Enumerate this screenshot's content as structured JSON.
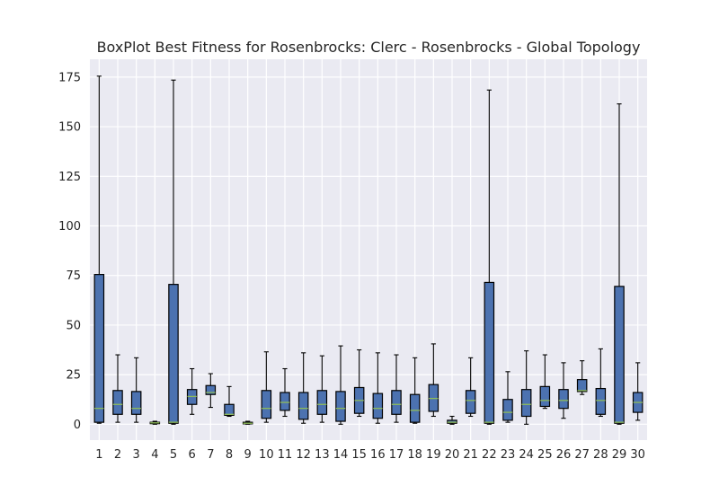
{
  "chart_data": {
    "type": "boxplot",
    "title": "BoxPlot Best Fitness for Rosenbrocks: Clerc - Rosenbrocks - Global Topology",
    "xlabel": "",
    "ylabel": "",
    "ylim": [
      -8,
      184
    ],
    "yticks": [
      0,
      25,
      50,
      75,
      100,
      125,
      150,
      175
    ],
    "grid": true,
    "background": "#eaeaf2",
    "box_color": "#4c72b0",
    "median_color": "#8fbc5a",
    "categories": [
      "1",
      "2",
      "3",
      "4",
      "5",
      "6",
      "7",
      "8",
      "9",
      "10",
      "11",
      "12",
      "13",
      "14",
      "15",
      "16",
      "17",
      "18",
      "19",
      "20",
      "21",
      "22",
      "23",
      "24",
      "25",
      "26",
      "27",
      "28",
      "29",
      "30"
    ],
    "boxes": [
      {
        "whislo": 0.5,
        "q1": 1,
        "med": 8,
        "q3": 75.5,
        "whishi": 175.5
      },
      {
        "whislo": 1,
        "q1": 5,
        "med": 10,
        "q3": 17,
        "whishi": 35
      },
      {
        "whislo": 1,
        "q1": 5,
        "med": 8,
        "q3": 16.5,
        "whishi": 33.5
      },
      {
        "whislo": 0,
        "q1": 0.3,
        "med": 0.7,
        "q3": 1,
        "whishi": 1.5
      },
      {
        "whislo": 0,
        "q1": 0.5,
        "med": 1,
        "q3": 70.5,
        "whishi": 173.5
      },
      {
        "whislo": 5,
        "q1": 10,
        "med": 14,
        "q3": 17.5,
        "whishi": 28
      },
      {
        "whislo": 8.5,
        "q1": 15,
        "med": 16,
        "q3": 19.5,
        "whishi": 25.5
      },
      {
        "whislo": 4,
        "q1": 4.5,
        "med": 5,
        "q3": 10,
        "whishi": 19
      },
      {
        "whislo": 0,
        "q1": 0.2,
        "med": 0.5,
        "q3": 1,
        "whishi": 1.5
      },
      {
        "whislo": 1,
        "q1": 3,
        "med": 8,
        "q3": 17,
        "whishi": 36.5
      },
      {
        "whislo": 4,
        "q1": 7,
        "med": 11,
        "q3": 16,
        "whishi": 28
      },
      {
        "whislo": 0.5,
        "q1": 2.5,
        "med": 8,
        "q3": 16,
        "whishi": 36
      },
      {
        "whislo": 1,
        "q1": 5,
        "med": 10,
        "q3": 17,
        "whishi": 34.5
      },
      {
        "whislo": 0,
        "q1": 1.5,
        "med": 8,
        "q3": 16.5,
        "whishi": 39.5
      },
      {
        "whislo": 4,
        "q1": 5.5,
        "med": 12,
        "q3": 18.5,
        "whishi": 37.5
      },
      {
        "whislo": 0.5,
        "q1": 3,
        "med": 8,
        "q3": 15.5,
        "whishi": 36
      },
      {
        "whislo": 1,
        "q1": 5,
        "med": 10,
        "q3": 17,
        "whishi": 35
      },
      {
        "whislo": 0.5,
        "q1": 1,
        "med": 7,
        "q3": 15,
        "whishi": 33.5
      },
      {
        "whislo": 4,
        "q1": 6.5,
        "med": 13,
        "q3": 20,
        "whishi": 40.5
      },
      {
        "whislo": 0,
        "q1": 0.5,
        "med": 1,
        "q3": 2,
        "whishi": 4
      },
      {
        "whislo": 4,
        "q1": 5.5,
        "med": 12,
        "q3": 17,
        "whishi": 33.5
      },
      {
        "whislo": 0,
        "q1": 0.5,
        "med": 1,
        "q3": 71.5,
        "whishi": 168.5
      },
      {
        "whislo": 1,
        "q1": 2,
        "med": 6,
        "q3": 12.5,
        "whishi": 26.5
      },
      {
        "whislo": 0,
        "q1": 4,
        "med": 10,
        "q3": 17.5,
        "whishi": 37
      },
      {
        "whislo": 8,
        "q1": 9,
        "med": 12,
        "q3": 19,
        "whishi": 35
      },
      {
        "whislo": 3,
        "q1": 8,
        "med": 12,
        "q3": 17.5,
        "whishi": 31
      },
      {
        "whislo": 15,
        "q1": 16.5,
        "med": 17,
        "q3": 22.5,
        "whishi": 32
      },
      {
        "whislo": 4,
        "q1": 5,
        "med": 12,
        "q3": 18,
        "whishi": 38
      },
      {
        "whislo": 0,
        "q1": 0.5,
        "med": 1,
        "q3": 69.5,
        "whishi": 161.5
      },
      {
        "whislo": 2,
        "q1": 6,
        "med": 11,
        "q3": 16,
        "whishi": 31
      }
    ]
  }
}
